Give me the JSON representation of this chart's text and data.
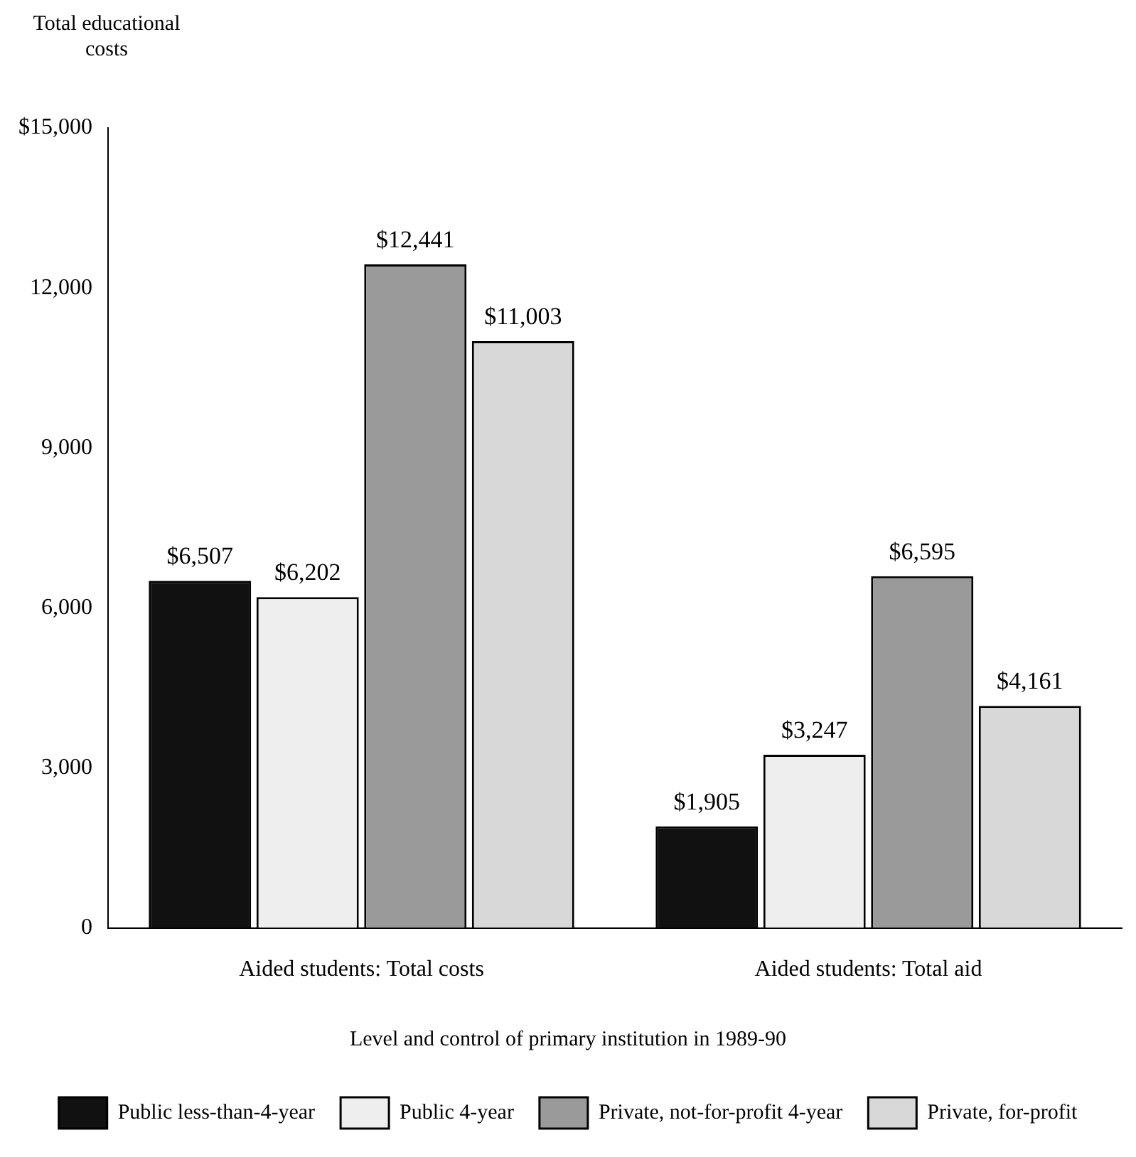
{
  "chart_data": {
    "type": "bar",
    "ylabel": "Total educational costs",
    "legend_title": "Level and control of primary institution in 1989-90",
    "categories": [
      "Aided students: Total costs",
      "Aided students: Total aid"
    ],
    "series": [
      {
        "name": "Public less-than-4-year",
        "color": "#111111",
        "values": [
          6507,
          1905
        ],
        "value_labels": [
          "$6,507",
          "$1,905"
        ]
      },
      {
        "name": "Public 4-year",
        "color": "#eeeeee",
        "values": [
          6202,
          3247
        ],
        "value_labels": [
          "$6,202",
          "$3,247"
        ]
      },
      {
        "name": "Private, not-for-profit 4-year",
        "color": "#9a9a9a",
        "values": [
          12441,
          6595
        ],
        "value_labels": [
          "$12,441",
          "$6,595"
        ]
      },
      {
        "name": "Private, for-profit",
        "color": "#d8d8d8",
        "values": [
          11003,
          4161
        ],
        "value_labels": [
          "$11,003",
          "$4,161"
        ]
      }
    ],
    "ylim": [
      0,
      15000
    ],
    "yticks": [
      0,
      {
        "value": 3000,
        "label": "3,000"
      },
      {
        "value": 6000,
        "label": "6,000"
      },
      {
        "value": 9000,
        "label": "9,000"
      },
      {
        "value": 12000,
        "label": "12,000"
      },
      {
        "value": 15000,
        "label": "$15,000"
      }
    ],
    "grid": false,
    "legend": "bottom"
  }
}
